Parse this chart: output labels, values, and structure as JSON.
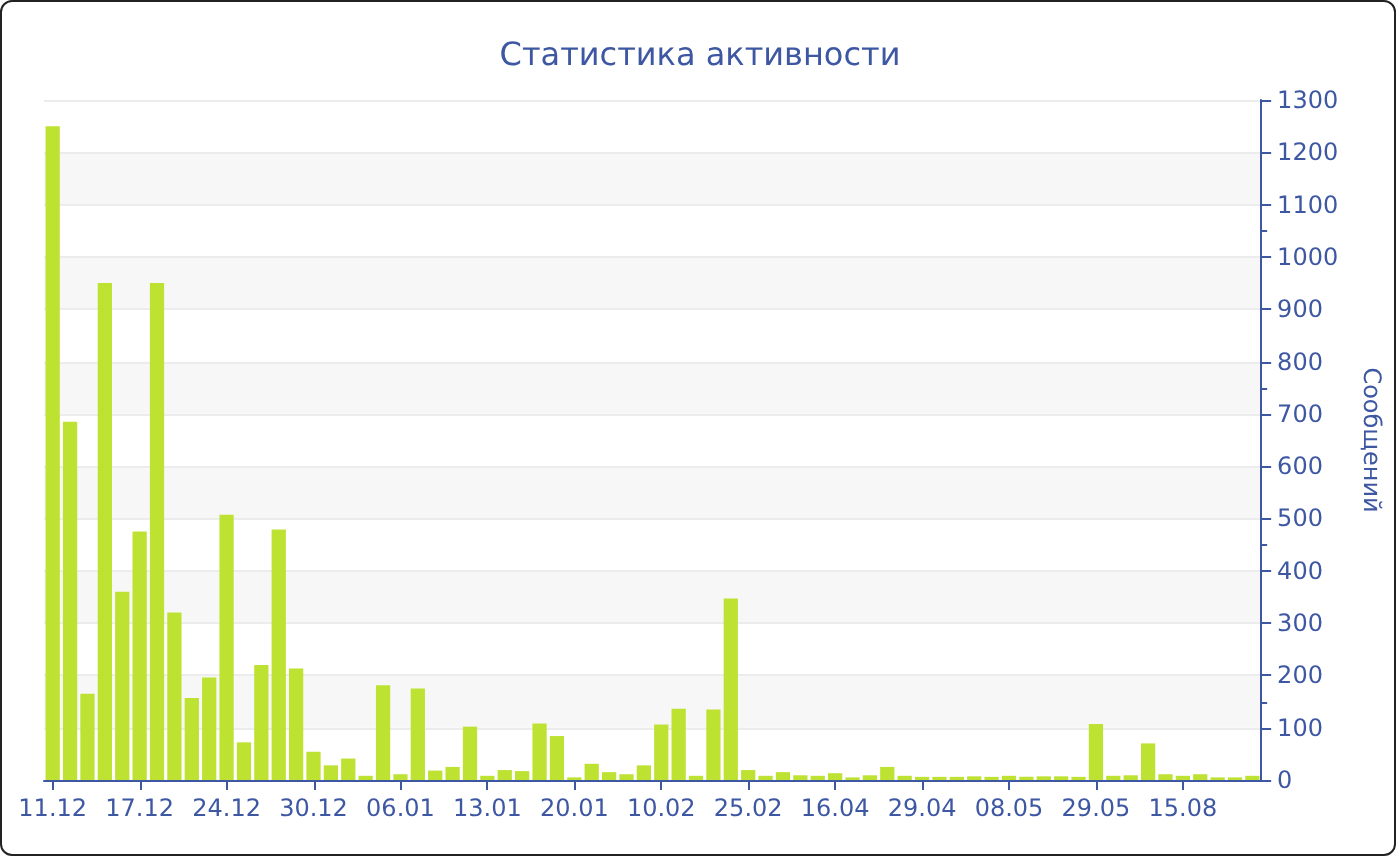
{
  "chart_data": {
    "type": "bar",
    "title": "Статистика активности",
    "ylabel": "Сообщений",
    "categories": [
      "11.12",
      null,
      null,
      null,
      null,
      "17.12",
      null,
      null,
      null,
      null,
      "24.12",
      null,
      null,
      null,
      null,
      "30.12",
      null,
      null,
      null,
      null,
      "06.01",
      null,
      null,
      null,
      null,
      "13.01",
      null,
      null,
      null,
      null,
      "20.01",
      null,
      null,
      null,
      null,
      "10.02",
      null,
      null,
      null,
      null,
      "25.02",
      null,
      null,
      null,
      null,
      "16.04",
      null,
      null,
      null,
      null,
      "29.04",
      null,
      null,
      null,
      null,
      "08.05",
      null,
      null,
      null,
      null,
      "29.05",
      null,
      null,
      null,
      null,
      "15.08",
      null,
      null,
      null,
      null
    ],
    "values": [
      1250,
      685,
      165,
      950,
      360,
      475,
      950,
      320,
      157,
      196,
      507,
      72,
      220,
      479,
      213,
      54,
      28,
      41,
      8,
      181,
      11,
      175,
      18,
      25,
      102,
      8,
      19,
      17,
      108,
      84,
      5,
      31,
      15,
      11,
      28,
      106,
      136,
      8,
      135,
      347,
      19,
      8,
      15,
      9,
      8,
      13,
      5,
      9,
      25,
      8,
      6,
      6,
      6,
      7,
      6,
      8,
      6,
      7,
      7,
      6,
      107,
      8,
      9,
      70,
      11,
      8,
      11,
      5,
      5,
      8
    ],
    "color": "#bde232",
    "ylim": [
      0,
      1300
    ],
    "yticks": [
      0,
      100,
      200,
      300,
      400,
      500,
      600,
      700,
      800,
      900,
      1000,
      1100,
      1200,
      1300
    ],
    "grid": "y"
  }
}
